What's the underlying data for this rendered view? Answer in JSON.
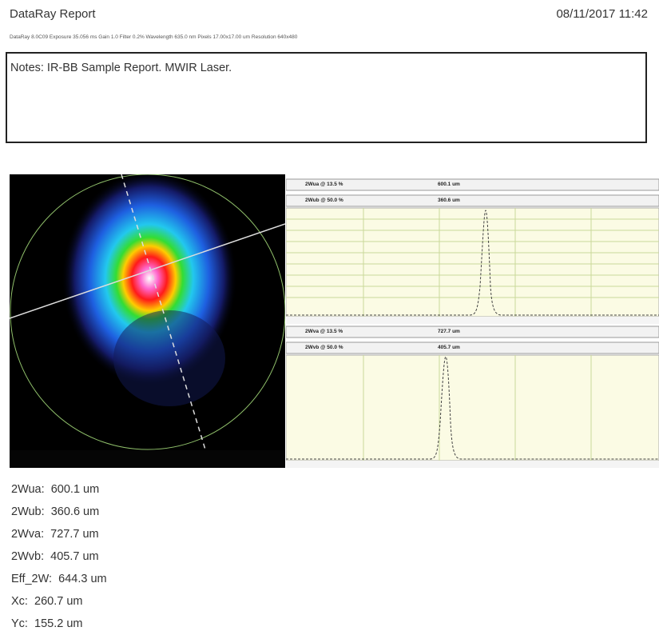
{
  "header": {
    "title": "DataRay Report",
    "datetime": "08/11/2017 11:42",
    "info": "DataRay 8.0C09 Exposure 35.056 ms Gain 1.0 Filter 0.2% Wavelength 635.0 nm Pixels 17.00x17.00 um Resolution 640x480"
  },
  "notes": "Notes: IR-BB Sample Report. MWIR Laser.",
  "profiles": [
    {
      "rows": [
        {
          "label": "2Wua @ 13.5 %",
          "value": "600.1 um"
        },
        {
          "label": "2Wub @ 50.0 %",
          "value": "360.6 um"
        }
      ]
    },
    {
      "rows": [
        {
          "label": "2Wva @ 13.5 %",
          "value": "727.7 um"
        },
        {
          "label": "2Wvb @ 50.0 %",
          "value": "405.7 um"
        }
      ]
    }
  ],
  "results": [
    {
      "label": "2Wua:",
      "value": "600.1 um"
    },
    {
      "label": "2Wub:",
      "value": "360.6 um"
    },
    {
      "label": "2Wva:",
      "value": "727.7 um"
    },
    {
      "label": "2Wvb:",
      "value": "405.7 um"
    },
    {
      "label": "Eff_2W:",
      "value": "644.3 um"
    },
    {
      "label": "Xc:",
      "value": "260.7 um"
    },
    {
      "label": "Yc:",
      "value": "155.2 um"
    }
  ]
}
